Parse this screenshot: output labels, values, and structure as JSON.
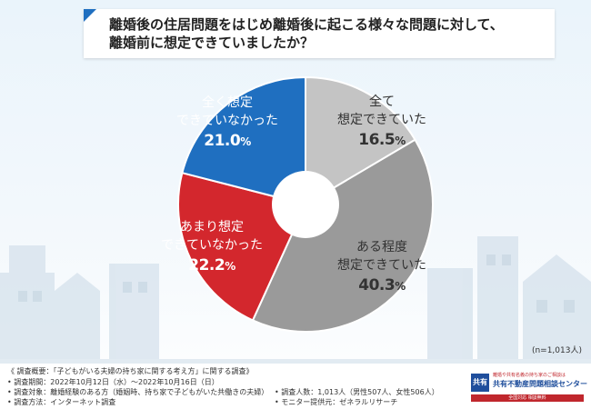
{
  "question": {
    "line1": "離婚後の住居問題をはじめ離婚後に起こる様々な問題に対して、",
    "line2": "離婚前に想定できていましたか？"
  },
  "chart_data": {
    "type": "pie",
    "donut": true,
    "start_angle_deg": 0,
    "direction": "clockwise",
    "slices": [
      {
        "label_line1": "全て",
        "label_line2": "想定できていた",
        "value": 16.5,
        "display": "16.5",
        "color": "#c4c4c4",
        "text_color": "dark"
      },
      {
        "label_line1": "ある程度",
        "label_line2": "想定できていた",
        "value": 40.3,
        "display": "40.3",
        "color": "#9a9a9a",
        "text_color": "dark"
      },
      {
        "label_line1": "あまり想定",
        "label_line2": "できていなかった",
        "value": 22.2,
        "display": "22.2",
        "color": "#d3272d",
        "text_color": "white"
      },
      {
        "label_line1": "全く想定",
        "label_line2": "できていなかった",
        "value": 21.0,
        "display": "21.0",
        "color": "#1f6fc0",
        "text_color": "white"
      }
    ],
    "unit": "%"
  },
  "sample_size": "(n=1,013人)",
  "footer": {
    "overview": "《 調査概要：「子どもがいる夫婦の持ち家に関する考え方」に関する調査》",
    "period": "• 調査期間：2022年10月12日（水）～2022年10月16日（日）",
    "target": "• 調査対象：離婚経験のある方（婚姻時、持ち家で子どもがいた共働きの夫婦）",
    "method": "• 調査方法：インターネット調査",
    "count": "• 調査人数：1,013人（男性507人、女性506人）",
    "provider": "• モニター提供元：ゼネラルリサーチ"
  },
  "logo": {
    "mark": "共有",
    "sub": "離婚や共有名義の持ち家のご相談は",
    "main": "共有不動産問題相談センター",
    "bar": "全国対応 相談無料"
  }
}
